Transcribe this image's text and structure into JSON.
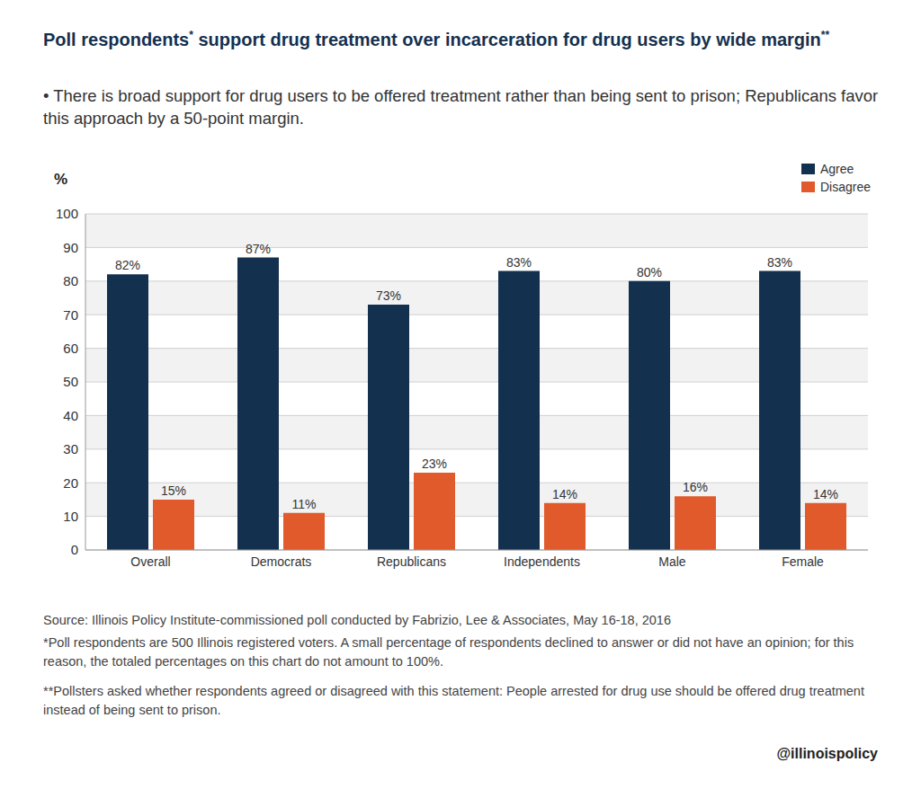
{
  "chart_data": {
    "type": "bar",
    "title": "Poll respondents* support drug treatment over incarceration for drug users by wide margin**",
    "subtitle": "• There is broad support for drug users to be offered treatment rather than being sent to prison; Republicans favor this approach by a 50-point margin.",
    "ylabel": "%",
    "categories": [
      "Overall",
      "Democrats",
      "Republicans",
      "Independents",
      "Male",
      "Female"
    ],
    "series": [
      {
        "name": "Agree",
        "color": "#14304f",
        "values": [
          82,
          87,
          73,
          83,
          80,
          83
        ],
        "value_labels": [
          "82%",
          "87%",
          "73%",
          "83%",
          "80%",
          "83%"
        ]
      },
      {
        "name": "Disagree",
        "color": "#e05a2b",
        "values": [
          15,
          11,
          23,
          14,
          16,
          14
        ],
        "value_labels": [
          "15%",
          "11%",
          "23%",
          "14%",
          "16%",
          "14%"
        ]
      }
    ],
    "ylim": [
      0,
      100
    ],
    "yticks": [
      0,
      10,
      20,
      30,
      40,
      50,
      60,
      70,
      80,
      90,
      100
    ],
    "grid": true,
    "legend": "top right",
    "data_labels": true,
    "annotations": [
      "Source: Illinois Policy Institute-commissioned poll conducted by Fabrizio, Lee & Associates, May 16-18, 2016",
      "*Poll respondents are 500 Illinois registered voters. A small percentage of respondents declined to answer or did not have an opinion; for this reason, the totaled percentages on this chart do not amount to 100%.",
      "**Pollsters asked whether respondents agreed or disagreed with this statement: People arrested for drug use should be offered drug treatment instead of being sent to prison.",
      "@illinoispolicy"
    ]
  }
}
